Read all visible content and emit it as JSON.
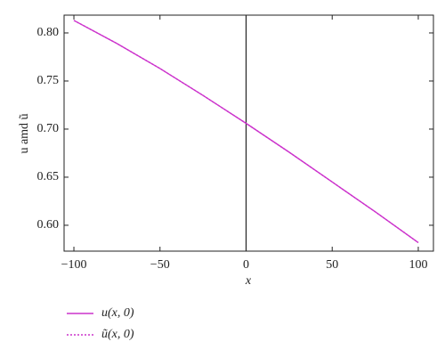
{
  "chart_data": {
    "type": "line",
    "x_label": "x",
    "y_label": "u amd ũ",
    "x": [
      -100,
      -75,
      -50,
      -25,
      0,
      25,
      50,
      75,
      100
    ],
    "series": [
      {
        "name": "u(x, 0)",
        "color": "#cc33cc",
        "dash": "solid",
        "values": [
          0.813,
          0.789,
          0.763,
          0.735,
          0.706,
          0.676,
          0.645,
          0.614,
          0.582
        ]
      },
      {
        "name": "ũ(x, 0)",
        "color": "#cc33cc",
        "dash": "dotted",
        "values": [
          0.813,
          0.789,
          0.763,
          0.735,
          0.706,
          0.676,
          0.645,
          0.614,
          0.582
        ]
      }
    ],
    "vline": 0,
    "xlim": [
      -105.7,
      108.8
    ],
    "ylim": [
      0.5731,
      0.8185
    ],
    "xticks": [
      {
        "value": -100,
        "label": "−100"
      },
      {
        "value": -50,
        "label": "−50"
      },
      0,
      50,
      100
    ],
    "yticks": [
      {
        "value": 0.6,
        "label": "0.60"
      },
      {
        "value": 0.65,
        "label": "0.65"
      },
      {
        "value": 0.7,
        "label": "0.70"
      },
      {
        "value": 0.75,
        "label": "0.75"
      },
      {
        "value": 0.8,
        "label": "0.80"
      }
    ],
    "grid": false,
    "legend": "bottom-left"
  }
}
